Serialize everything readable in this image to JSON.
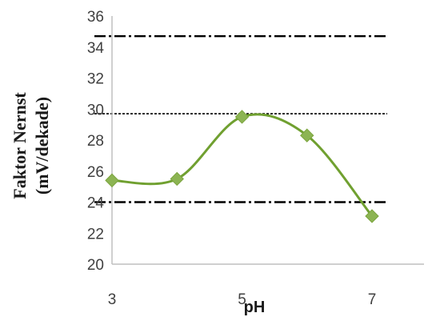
{
  "chart_data": {
    "type": "line",
    "title": "",
    "xlabel": "pH",
    "ylabel": "Faktor Nernst (mV/dekade)",
    "ylabel_lines": [
      "Faktor Nernst",
      "(mV/dekade)"
    ],
    "x_ticks": [
      "3",
      "5",
      "7"
    ],
    "xlim": [
      3,
      7.8
    ],
    "ylim": [
      20,
      36
    ],
    "y_ticks": [
      "20",
      "22",
      "24",
      "26",
      "28",
      "30",
      "32",
      "34",
      "36"
    ],
    "grid": false,
    "smoothed": true,
    "series": [
      {
        "x": [
          3,
          4,
          5,
          6,
          7
        ],
        "values": [
          25.4,
          25.5,
          29.5,
          28.3,
          23.1
        ],
        "color": "#70a030",
        "marker": "diamond",
        "marker_color": "#8cb453"
      }
    ],
    "reference_lines": [
      {
        "y": 34.7,
        "style": "dash-dot",
        "color": "#000000"
      },
      {
        "y": 29.7,
        "style": "dotted",
        "color": "#000000"
      },
      {
        "y": 24.0,
        "style": "dash-dot",
        "color": "#000000"
      }
    ],
    "axis_color": "#bfbfbf"
  }
}
